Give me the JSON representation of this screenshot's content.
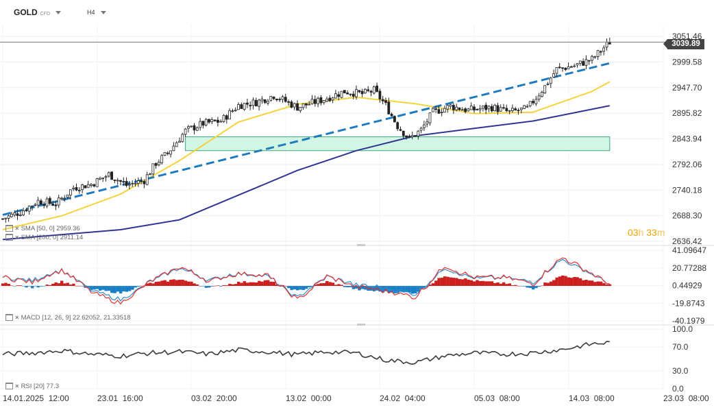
{
  "toolbar": {
    "symbol": "GOLD",
    "symbol_type": "CFD",
    "timeframe": "H4"
  },
  "price_axis": {
    "ticks": [
      "3051.46",
      "2999.58",
      "2947.70",
      "2895.82",
      "2843.94",
      "2792.06",
      "2740.18",
      "2688.30",
      "2636.42"
    ],
    "current_price": "3039.89"
  },
  "macd_axis": {
    "ticks": [
      "41.09647",
      "20.77288",
      "0.44929",
      "-19.8743",
      "-40.1979"
    ]
  },
  "rsi_axis": {
    "ticks": [
      "100.0",
      "70.0",
      "30.0",
      "0.0"
    ]
  },
  "time_axis": {
    "ticks": [
      "14.01.2025  12:00",
      "23.01  16:00",
      "03.02  20:00",
      "13.02  00:00",
      "24.02  04:00",
      "05.03  08:00",
      "14.03  08:00",
      "23.03  08:00"
    ]
  },
  "legend": {
    "sma50": "SMA  [50, 0]  2959.36",
    "sma200": "SMA  [200, 0]  2911.14",
    "macd": "MACD  [12, 26, 9]  22.62052,  21.33518",
    "rsi": "RSI  [20]  77.3"
  },
  "countdown": {
    "hours": "03",
    "h_unit": "h",
    "minutes": "33",
    "m_unit": "m"
  },
  "colors": {
    "sma50": "#f5d33c",
    "sma200": "#2e3592",
    "trendline": "#1f7bbd",
    "zone_fill": "#d3f5e4",
    "zone_border": "#3aa87a",
    "macd_line": "#2c8fd0",
    "signal_line": "#e03030",
    "hist_pos": "#cc1f1f",
    "hist_neg": "#1a7fc4",
    "rsi_line": "#3a3a3a",
    "candle": "#222222"
  },
  "chart_data": [
    {
      "type": "candlestick",
      "title": "GOLD CFD H4",
      "x_ticks": [
        "14.01.2025 12:00",
        "23.01 16:00",
        "03.02 20:00",
        "13.02 00:00",
        "24.02 04:00",
        "05.03 08:00",
        "14.03 08:00",
        "23.03 08:00"
      ],
      "ylim": [
        2636.42,
        3051.46
      ],
      "y_ticks": [
        3051.46,
        2999.58,
        2947.7,
        2895.82,
        2843.94,
        2792.06,
        2740.18,
        2688.3,
        2636.42
      ],
      "last_price": 3039.89,
      "close_path": [
        [
          0,
          2682
        ],
        [
          6,
          2696
        ],
        [
          12,
          2718
        ],
        [
          18,
          2712
        ],
        [
          24,
          2745
        ],
        [
          30,
          2752
        ],
        [
          36,
          2772
        ],
        [
          42,
          2750
        ],
        [
          48,
          2760
        ],
        [
          52,
          2795
        ],
        [
          56,
          2815
        ],
        [
          62,
          2860
        ],
        [
          68,
          2875
        ],
        [
          74,
          2880
        ],
        [
          80,
          2912
        ],
        [
          86,
          2918
        ],
        [
          92,
          2932
        ],
        [
          100,
          2908
        ],
        [
          108,
          2922
        ],
        [
          116,
          2940
        ],
        [
          122,
          2935
        ],
        [
          126,
          2942
        ],
        [
          130,
          2912
        ],
        [
          134,
          2870
        ],
        [
          138,
          2844
        ],
        [
          142,
          2862
        ],
        [
          146,
          2898
        ],
        [
          152,
          2910
        ],
        [
          158,
          2902
        ],
        [
          166,
          2908
        ],
        [
          172,
          2898
        ],
        [
          178,
          2905
        ],
        [
          184,
          2950
        ],
        [
          188,
          2985
        ],
        [
          194,
          2992
        ],
        [
          200,
          3005
        ],
        [
          206,
          3040
        ]
      ],
      "series": [
        {
          "name": "SMA [50, 0]",
          "last": 2959.36,
          "path": [
            [
              0,
              2660
            ],
            [
              20,
              2688
            ],
            [
              40,
              2732
            ],
            [
              60,
              2800
            ],
            [
              80,
              2878
            ],
            [
              100,
              2914
            ],
            [
              120,
              2928
            ],
            [
              140,
              2915
            ],
            [
              160,
              2895
            ],
            [
              180,
              2898
            ],
            [
              200,
              2940
            ],
            [
              206,
              2959.36
            ]
          ]
        },
        {
          "name": "SMA [200, 0]",
          "last": 2911.14,
          "path": [
            [
              0,
              2640
            ],
            [
              40,
              2660
            ],
            [
              60,
              2680
            ],
            [
              80,
              2730
            ],
            [
              100,
              2780
            ],
            [
              120,
              2820
            ],
            [
              140,
              2850
            ],
            [
              160,
              2865
            ],
            [
              180,
              2880
            ],
            [
              206,
              2911.14
            ]
          ]
        },
        {
          "name": "Trendline",
          "path": [
            [
              0,
              2690
            ],
            [
              206,
              2997
            ]
          ]
        }
      ],
      "zones": [
        {
          "y_range": [
            2820,
            2848
          ],
          "x_range": [
            62,
            206
          ]
        }
      ]
    },
    {
      "type": "macd",
      "ylim": [
        -40.1979,
        41.09647
      ],
      "y_ticks": [
        41.09647,
        20.77288,
        0.44929,
        -19.8743,
        -40.1979
      ],
      "series": [
        {
          "name": "MACD",
          "last": 22.62052
        },
        {
          "name": "Signal",
          "last": 21.33518
        }
      ],
      "histogram_path": [
        [
          0,
          3
        ],
        [
          10,
          -2
        ],
        [
          20,
          5
        ],
        [
          30,
          -4
        ],
        [
          40,
          -8
        ],
        [
          50,
          3
        ],
        [
          60,
          8
        ],
        [
          70,
          -2
        ],
        [
          80,
          4
        ],
        [
          90,
          6
        ],
        [
          100,
          -6
        ],
        [
          110,
          5
        ],
        [
          120,
          -4
        ],
        [
          130,
          -7
        ],
        [
          140,
          -8
        ],
        [
          150,
          12
        ],
        [
          160,
          6
        ],
        [
          170,
          3
        ],
        [
          180,
          -3
        ],
        [
          190,
          12
        ],
        [
          200,
          6
        ],
        [
          206,
          2
        ]
      ]
    },
    {
      "type": "line",
      "name": "RSI [20]",
      "ylim": [
        0,
        100
      ],
      "y_ticks": [
        100,
        70,
        30,
        0
      ],
      "last": 77.3,
      "path": [
        [
          0,
          58
        ],
        [
          10,
          60
        ],
        [
          20,
          64
        ],
        [
          30,
          58
        ],
        [
          40,
          55
        ],
        [
          50,
          60
        ],
        [
          60,
          62
        ],
        [
          70,
          58
        ],
        [
          80,
          65
        ],
        [
          90,
          62
        ],
        [
          100,
          57
        ],
        [
          110,
          62
        ],
        [
          120,
          60
        ],
        [
          130,
          48
        ],
        [
          140,
          44
        ],
        [
          150,
          55
        ],
        [
          160,
          60
        ],
        [
          170,
          58
        ],
        [
          180,
          60
        ],
        [
          190,
          66
        ],
        [
          200,
          75
        ],
        [
          206,
          77.3
        ]
      ]
    }
  ]
}
